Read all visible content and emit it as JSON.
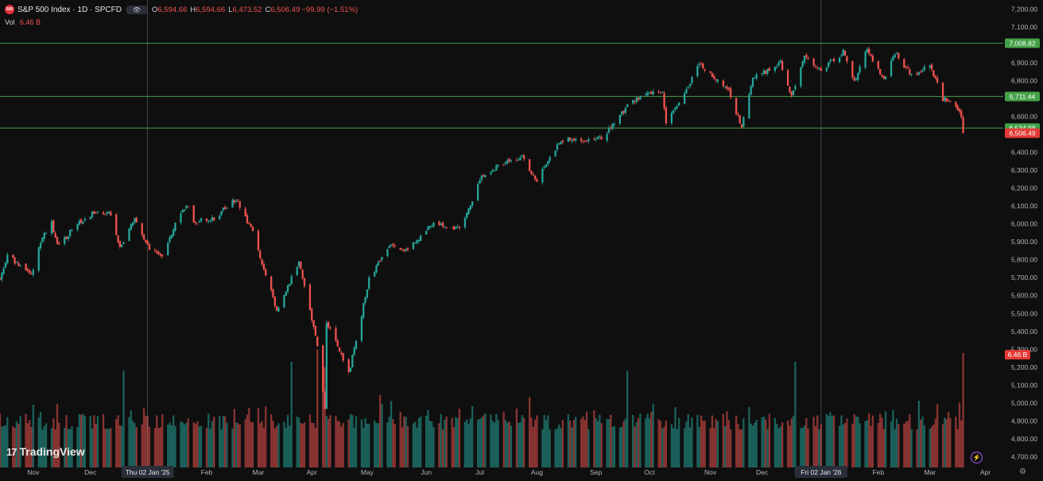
{
  "header": {
    "symbol_icon": "500",
    "symbol_name": "S&P 500 Index · 1D · SPCFD",
    "toggle_icon": "eye-icon",
    "ohlc": {
      "o_label": "O",
      "o": "6,594.66",
      "h_label": "H",
      "h": "6,594.66",
      "l_label": "L",
      "l": "6,473.52",
      "c_label": "C",
      "c": "6,506.49",
      "change": "−99.99 (−1.51%)"
    }
  },
  "volume_legend": {
    "label": "Vol",
    "value": "6.46 B"
  },
  "branding": {
    "logo_mark": "17",
    "logo_text": "TradingView"
  },
  "colors": {
    "background": "#0f0f0f",
    "up": "#26a69a",
    "down": "#ef5350",
    "level_line": "#4caf50",
    "crosshair": "#787b86"
  },
  "chart_data": {
    "type": "candlestick",
    "title": "S&P 500 Index · 1D · SPCFD",
    "ylim": [
      4640,
      7250
    ],
    "y_ticks": [
      "7,200.00",
      "7,100.00",
      "7,000.00",
      "6,900.00",
      "6,800.00",
      "6,700.00",
      "6,600.00",
      "6,500.00",
      "6,400.00",
      "6,300.00",
      "6,200.00",
      "6,100.00",
      "6,000.00",
      "5,900.00",
      "5,800.00",
      "5,700.00",
      "5,600.00",
      "5,500.00",
      "5,400.00",
      "5,300.00",
      "5,200.00",
      "5,100.00",
      "5,000.00",
      "4,900.00",
      "4,800.00",
      "4,700.00"
    ],
    "x_ticks": [
      {
        "label": "Nov",
        "date": "2024-11-01"
      },
      {
        "label": "Dec",
        "date": "2024-12-02"
      },
      {
        "label": "Feb",
        "date": "2025-02-03"
      },
      {
        "label": "Mar",
        "date": "2025-03-03"
      },
      {
        "label": "Apr",
        "date": "2025-04-01"
      },
      {
        "label": "May",
        "date": "2025-05-01"
      },
      {
        "label": "Jun",
        "date": "2025-06-02"
      },
      {
        "label": "Jul",
        "date": "2025-07-01"
      },
      {
        "label": "Aug",
        "date": "2025-08-01"
      },
      {
        "label": "Sep",
        "date": "2025-09-02"
      },
      {
        "label": "Oct",
        "date": "2025-10-01"
      },
      {
        "label": "Nov",
        "date": "2025-11-03"
      },
      {
        "label": "Dec",
        "date": "2025-12-01"
      },
      {
        "label": "Feb",
        "date": "2026-02-02"
      },
      {
        "label": "Mar",
        "date": "2026-03-02"
      },
      {
        "label": "Apr",
        "date": "2026-04-01"
      }
    ],
    "x_highlight_labels": [
      {
        "label": "Thu 02 Jan '25",
        "date": "2025-01-02"
      },
      {
        "label": "Fri 02 Jan '26",
        "date": "2026-01-02"
      }
    ],
    "start_date": "2024-10-14",
    "last_date": "2026-03-20",
    "x_range_end": "2026-04-09",
    "close_path": [
      [
        "2024-10-14",
        5700
      ],
      [
        "2024-10-18",
        5830
      ],
      [
        "2024-10-25",
        5760
      ],
      [
        "2024-10-31",
        5720
      ],
      [
        "2024-11-06",
        5930
      ],
      [
        "2024-11-11",
        6000
      ],
      [
        "2024-11-15",
        5870
      ],
      [
        "2024-11-22",
        5970
      ],
      [
        "2024-11-29",
        6030
      ],
      [
        "2024-12-06",
        6080
      ],
      [
        "2024-12-13",
        6050
      ],
      [
        "2024-12-18",
        5870
      ],
      [
        "2024-12-26",
        6030
      ],
      [
        "2025-01-02",
        5870
      ],
      [
        "2025-01-10",
        5830
      ],
      [
        "2025-01-17",
        6000
      ],
      [
        "2025-01-23",
        6110
      ],
      [
        "2025-01-27",
        6010
      ],
      [
        "2025-02-07",
        6030
      ],
      [
        "2025-02-19",
        6140
      ],
      [
        "2025-02-28",
        5950
      ],
      [
        "2025-03-13",
        5520
      ],
      [
        "2025-03-25",
        5780
      ],
      [
        "2025-04-03",
        5390
      ],
      [
        "2025-04-08",
        4980
      ],
      [
        "2025-04-09",
        5460
      ],
      [
        "2025-04-21",
        5160
      ],
      [
        "2025-05-02",
        5690
      ],
      [
        "2025-05-13",
        5890
      ],
      [
        "2025-05-21",
        5840
      ],
      [
        "2025-06-06",
        6000
      ],
      [
        "2025-06-20",
        5970
      ],
      [
        "2025-07-03",
        6280
      ],
      [
        "2025-07-24",
        6380
      ],
      [
        "2025-08-01",
        6240
      ],
      [
        "2025-08-14",
        6470
      ],
      [
        "2025-09-05",
        6480
      ],
      [
        "2025-09-22",
        6690
      ],
      [
        "2025-10-08",
        6750
      ],
      [
        "2025-10-10",
        6550
      ],
      [
        "2025-10-28",
        6890
      ],
      [
        "2025-11-13",
        6740
      ],
      [
        "2025-11-20",
        6540
      ],
      [
        "2025-11-26",
        6810
      ],
      [
        "2025-12-11",
        6900
      ],
      [
        "2025-12-17",
        6720
      ],
      [
        "2025-12-24",
        6930
      ],
      [
        "2026-01-02",
        6860
      ],
      [
        "2026-01-14",
        6960
      ],
      [
        "2026-01-20",
        6800
      ],
      [
        "2026-01-27",
        6970
      ],
      [
        "2026-02-05",
        6800
      ],
      [
        "2026-02-11",
        6960
      ],
      [
        "2026-02-20",
        6830
      ],
      [
        "2026-03-02",
        6880
      ],
      [
        "2026-03-09",
        6700
      ],
      [
        "2026-03-16",
        6650
      ],
      [
        "2026-03-19",
        6594.66
      ],
      [
        "2026-03-20",
        6506.49
      ]
    ],
    "last_candle": {
      "date": "2026-03-20",
      "open": 6594.66,
      "high": 6594.66,
      "low": 6473.52,
      "close": 6506.49
    },
    "volume": {
      "label": "Vol",
      "last": "6.46 B",
      "axis_min": 4640,
      "baseline_level": 4900,
      "spikes": [
        [
          "2024-12-20",
          5180
        ],
        [
          "2025-03-21",
          5230
        ],
        [
          "2025-04-04",
          5300
        ],
        [
          "2025-04-07",
          5250
        ],
        [
          "2025-04-08",
          5200
        ],
        [
          "2025-09-19",
          5180
        ],
        [
          "2025-12-19",
          5230
        ],
        [
          "2026-03-20",
          5280
        ]
      ]
    },
    "horizontal_levels": [
      {
        "value": 7008.82,
        "label": "7,008.82"
      },
      {
        "value": 6711.44,
        "label": "6,711.44"
      },
      {
        "value": 6534.98,
        "label": "6,534.98"
      }
    ],
    "last_price_label": {
      "value": 6506.49,
      "label": "6,506.49"
    },
    "volume_price_tag": {
      "value": 5270,
      "label": "6.46 B"
    },
    "crosshair_dates": [
      "2025-01-02",
      "2026-01-02"
    ],
    "grid": false
  }
}
